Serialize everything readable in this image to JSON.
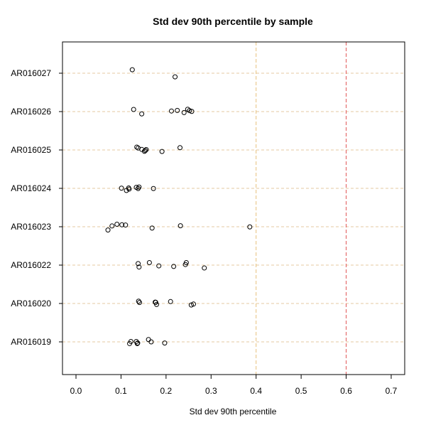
{
  "chart_data": {
    "type": "scatter",
    "title": "Std dev 90th percentile by sample",
    "xlabel": "Std dev 90th percentile",
    "ylabel": "",
    "xlim": [
      -0.03,
      0.73
    ],
    "x_ticks": [
      {
        "value": 0.0,
        "label": "0.0"
      },
      {
        "value": 0.1,
        "label": "0.1"
      },
      {
        "value": 0.2,
        "label": "0.2"
      },
      {
        "value": 0.3,
        "label": "0.3"
      },
      {
        "value": 0.4,
        "label": "0.4"
      },
      {
        "value": 0.5,
        "label": "0.5"
      },
      {
        "value": 0.6,
        "label": "0.6"
      },
      {
        "value": 0.7,
        "label": "0.7"
      }
    ],
    "categories": [
      "AR016027",
      "AR016026",
      "AR016025",
      "AR016024",
      "AR016023",
      "AR016022",
      "AR016020",
      "AR016019"
    ],
    "gridlines": "horizontal dashed per category",
    "reference_lines": [
      {
        "x": 0.4,
        "color": "#e8c07a",
        "style": "dashed"
      },
      {
        "x": 0.6,
        "color": "#e05555",
        "style": "dashed"
      }
    ],
    "point_color": "#000000",
    "grid_color": "#e6caa0",
    "series": [
      {
        "name": "AR016027",
        "values": [
          0.125,
          0.22
        ]
      },
      {
        "name": "AR016026",
        "values": [
          0.128,
          0.146,
          0.212,
          0.225,
          0.24,
          0.248,
          0.252,
          0.257
        ]
      },
      {
        "name": "AR016025",
        "values": [
          0.135,
          0.138,
          0.146,
          0.152,
          0.154,
          0.156,
          0.191,
          0.231
        ]
      },
      {
        "name": "AR016024",
        "values": [
          0.101,
          0.112,
          0.117,
          0.118,
          0.134,
          0.138,
          0.14,
          0.172
        ]
      },
      {
        "name": "AR016023",
        "values": [
          0.071,
          0.08,
          0.091,
          0.102,
          0.11,
          0.169,
          0.232,
          0.386
        ]
      },
      {
        "name": "AR016022",
        "values": [
          0.138,
          0.14,
          0.163,
          0.184,
          0.217,
          0.243,
          0.245,
          0.285
        ]
      },
      {
        "name": "AR016020",
        "values": [
          0.139,
          0.141,
          0.176,
          0.177,
          0.179,
          0.21,
          0.256,
          0.261
        ]
      },
      {
        "name": "AR016019",
        "values": [
          0.119,
          0.122,
          0.134,
          0.136,
          0.137,
          0.161,
          0.167,
          0.197
        ]
      }
    ],
    "jitter": [
      [
        0.18,
        -0.19
      ],
      [
        0.11,
        -0.12,
        0.03,
        0.06,
        -0.05,
        0.12,
        0.05,
        0.01
      ],
      [
        0.15,
        0.1,
        0.03,
        -0.07,
        -0.03,
        0.02,
        -0.08,
        0.12
      ],
      [
        0.01,
        -0.11,
        0.02,
        -0.04,
        0.05,
        -0.01,
        0.07,
        -0.01
      ],
      [
        -0.17,
        0.04,
        0.13,
        0.1,
        0.09,
        -0.07,
        0.05,
        -0.01
      ],
      [
        0.08,
        -0.1,
        0.13,
        -0.04,
        -0.07,
        0.03,
        0.13,
        -0.15
      ],
      [
        0.12,
        0.05,
        0.07,
        0.06,
        -0.05,
        0.1,
        -0.08,
        -0.03
      ],
      [
        -0.09,
        0.02,
        0.02,
        -0.09,
        -0.06,
        0.12,
        0.0,
        -0.06
      ]
    ]
  }
}
